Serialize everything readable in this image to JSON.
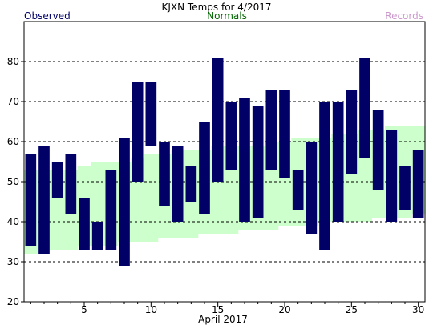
{
  "chart_data": {
    "type": "bar",
    "title": "KJXN Temps for 4/2017",
    "xlabel": "April 2017",
    "ylabel": "",
    "legend": {
      "placement": "top",
      "observed": "Observed",
      "normals": "Normals",
      "records": "Records"
    },
    "colors": {
      "observed": "#000066",
      "normals": "#ccffcc",
      "normals_label": "#006600",
      "records_label": "#cc99cc"
    },
    "ylim": [
      20,
      90
    ],
    "yticks": [
      20,
      30,
      40,
      50,
      60,
      70,
      80
    ],
    "xlim": [
      0.5,
      30.5
    ],
    "xticks": [
      5,
      10,
      15,
      20,
      25,
      30
    ],
    "grid": true,
    "days": [
      1,
      2,
      3,
      4,
      5,
      6,
      7,
      8,
      9,
      10,
      11,
      12,
      13,
      14,
      15,
      16,
      17,
      18,
      19,
      20,
      21,
      22,
      23,
      24,
      25,
      26,
      27,
      28,
      29,
      30
    ],
    "observed_high": [
      57,
      59,
      55,
      57,
      46,
      40,
      53,
      61,
      75,
      75,
      60,
      59,
      54,
      65,
      81,
      70,
      71,
      69,
      73,
      73,
      53,
      60,
      70,
      70,
      73,
      81,
      68,
      63,
      54,
      58
    ],
    "observed_low": [
      34,
      32,
      46,
      42,
      33,
      33,
      33,
      29,
      50,
      59,
      44,
      40,
      45,
      42,
      50,
      53,
      40,
      41,
      53,
      51,
      43,
      37,
      33,
      40,
      52,
      56,
      48,
      40,
      43,
      41
    ],
    "normal_high": [
      53,
      53,
      53,
      53,
      54,
      55,
      55,
      55,
      56,
      57,
      57,
      58,
      58,
      58,
      59,
      59,
      59,
      59,
      60,
      60,
      61,
      61,
      61,
      62,
      62,
      63,
      63,
      64,
      64,
      64
    ],
    "normal_low": [
      32,
      33,
      33,
      33,
      34,
      34,
      34,
      35,
      35,
      35,
      36,
      36,
      36,
      37,
      37,
      37,
      38,
      38,
      38,
      39,
      39,
      39,
      40,
      40,
      40,
      40,
      41,
      41,
      41,
      42
    ]
  }
}
